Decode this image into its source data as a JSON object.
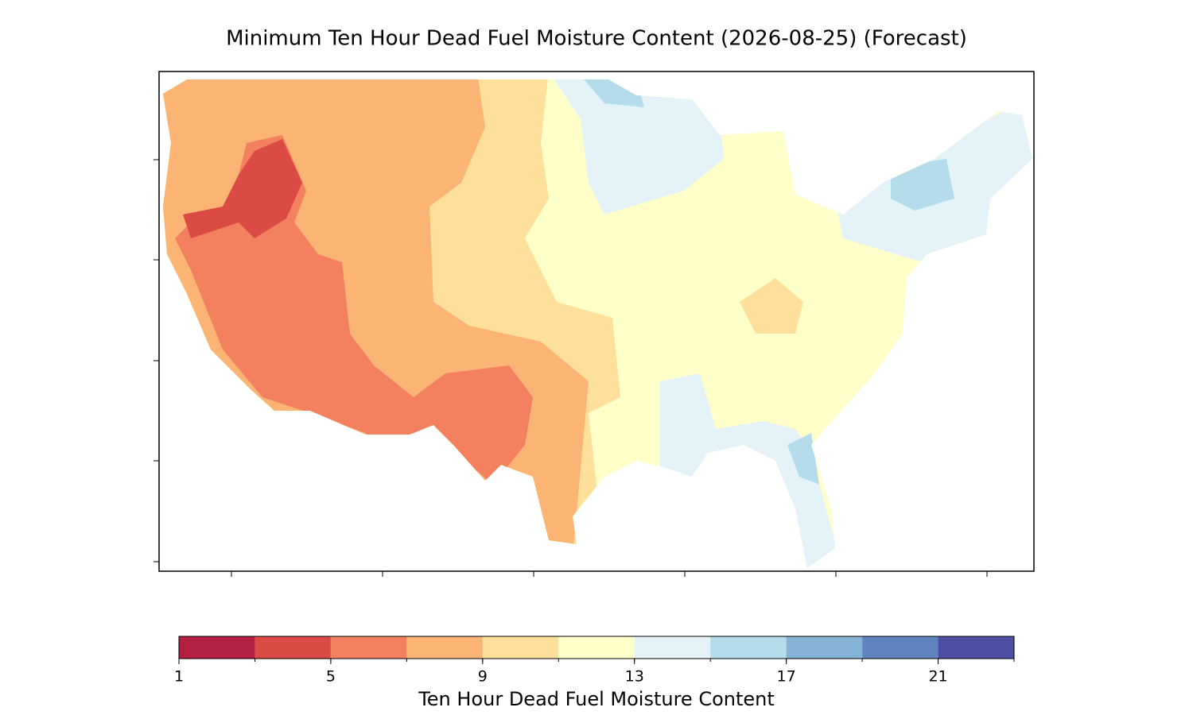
{
  "title": "Minimum Ten Hour Dead Fuel Moisture Content (2026-08-25) (Forecast)",
  "colorbar": {
    "label": "Ten Hour Dead Fuel Moisture Content",
    "levels": [
      1,
      3,
      5,
      7,
      9,
      11,
      13,
      15,
      17,
      19,
      21,
      23
    ],
    "colors": [
      "#b4203f",
      "#dc4a45",
      "#f3805f",
      "#fbb474",
      "#fee09a",
      "#ffffc9",
      "#e4f3f8",
      "#b4dcea",
      "#85b3d5",
      "#5f84bf",
      "#4c4fa2"
    ],
    "ticks": [
      1,
      5,
      9,
      13,
      17,
      21
    ]
  }
}
